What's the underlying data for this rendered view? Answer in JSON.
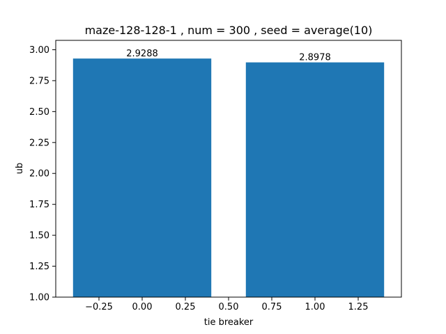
{
  "chart_data": {
    "type": "bar",
    "title": "maze-128-128-1 , num = 300 , seed = average(10)",
    "xlabel": "tie breaker",
    "ylabel": "ub",
    "x": [
      0,
      1
    ],
    "values": [
      2.9288,
      2.8978
    ],
    "value_labels": [
      "2.9288",
      "2.8978"
    ],
    "bar_width": 0.8,
    "xlim": [
      -0.5,
      1.5
    ],
    "ylim": [
      1.0,
      3.0758
    ],
    "x_ticks": [
      -0.25,
      0.0,
      0.25,
      0.5,
      0.75,
      1.0,
      1.25
    ],
    "x_tick_labels": [
      "−0.25",
      "0.00",
      "0.25",
      "0.50",
      "0.75",
      "1.00",
      "1.25"
    ],
    "y_ticks": [
      1.0,
      1.25,
      1.5,
      1.75,
      2.0,
      2.25,
      2.5,
      2.75,
      3.0
    ],
    "y_tick_labels": [
      "1.00",
      "1.25",
      "1.50",
      "1.75",
      "2.00",
      "2.25",
      "2.50",
      "2.75",
      "3.00"
    ],
    "grid": false,
    "bar_color": "#1f77b4"
  }
}
